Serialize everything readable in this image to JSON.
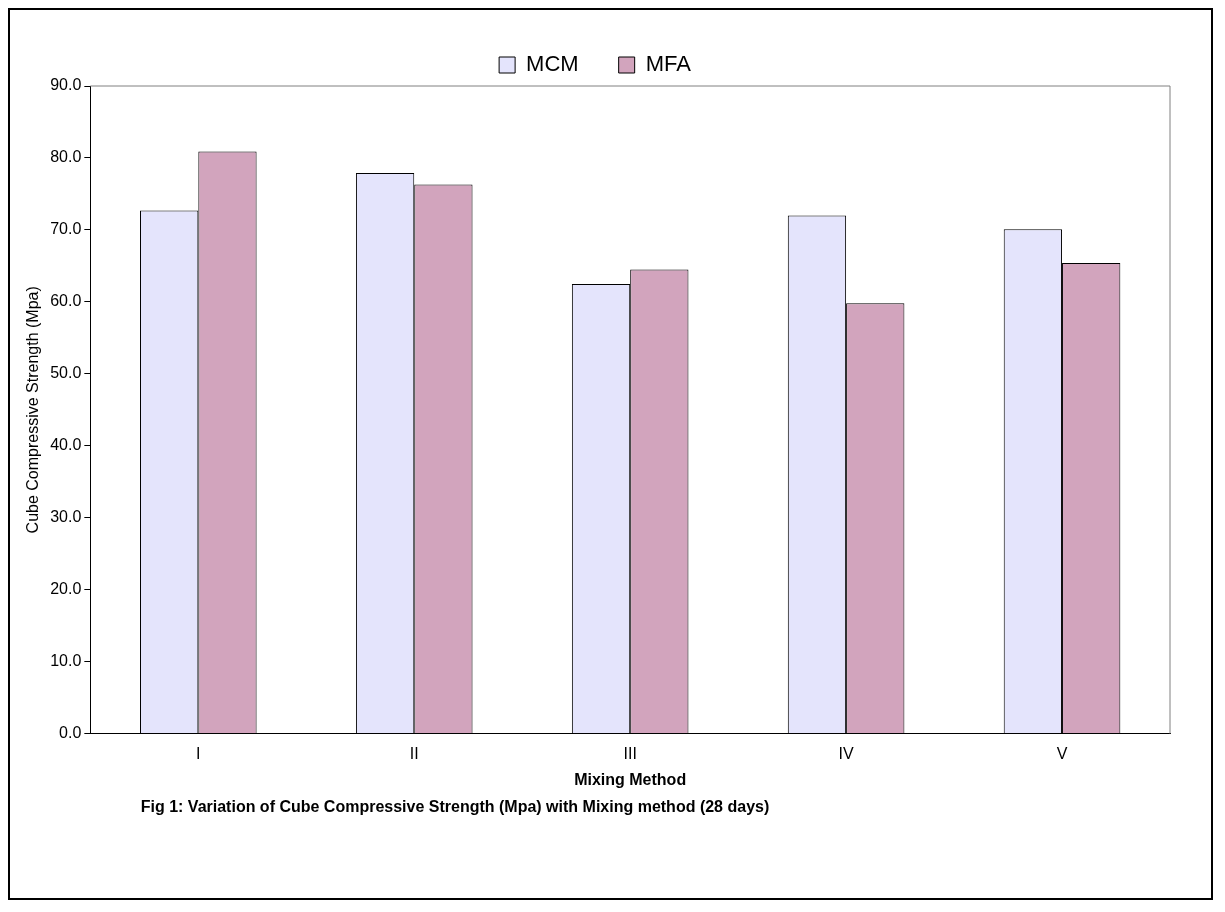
{
  "chart_data": {
    "type": "bar",
    "title": "Fig 1: Variation of Cube Compressive Strength (Mpa) with Mixing method (28 days)",
    "xlabel": "Mixing Method",
    "ylabel": "Cube Compressive Strength (Mpa)",
    "categories": [
      "I",
      "II",
      "III",
      "IV",
      "V"
    ],
    "series": [
      {
        "name": "MCM",
        "color": "#e4e4fc",
        "values": [
          72.7,
          77.9,
          62.5,
          72.0,
          70.1
        ]
      },
      {
        "name": "MFA",
        "color": "#d2a4bd",
        "values": [
          80.9,
          76.3,
          64.5,
          59.8,
          65.4
        ]
      }
    ],
    "ylim": [
      0,
      90
    ],
    "yticks": [
      {
        "value": 0,
        "label": "0.0"
      },
      {
        "value": 10,
        "label": "10.0"
      },
      {
        "value": 20,
        "label": "20.0"
      },
      {
        "value": 30,
        "label": "30.0"
      },
      {
        "value": 40,
        "label": "40.0"
      },
      {
        "value": 50,
        "label": "50.0"
      },
      {
        "value": 60,
        "label": "60.0"
      },
      {
        "value": 70,
        "label": "70.0"
      },
      {
        "value": 80,
        "label": "80.0"
      },
      {
        "value": 90,
        "label": "90.0"
      }
    ],
    "grid": false,
    "legend": "top"
  }
}
